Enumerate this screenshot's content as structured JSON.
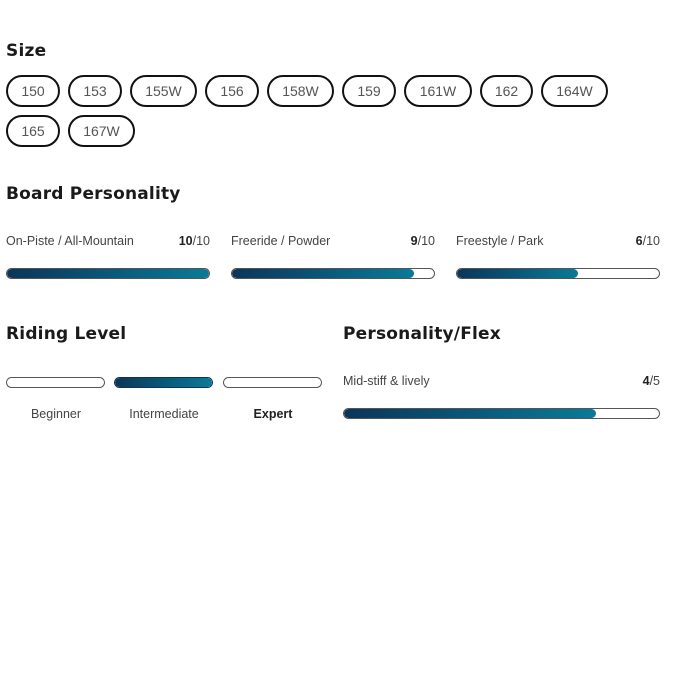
{
  "size": {
    "title": "Size",
    "options": [
      "150",
      "153",
      "155W",
      "156",
      "158W",
      "159",
      "161W",
      "162",
      "164W",
      "165",
      "167W"
    ]
  },
  "personality": {
    "title": "Board Personality",
    "items": [
      {
        "label": "On-Piste / All-Mountain",
        "value": "10",
        "max": "/10"
      },
      {
        "label": "Freeride / Powder",
        "value": "9",
        "max": "/10"
      },
      {
        "label": "Freestyle / Park",
        "value": "6",
        "max": "/10"
      }
    ]
  },
  "riding": {
    "title": "Riding Level",
    "levels": [
      "Beginner",
      "Intermediate",
      "Expert"
    ],
    "active": "Intermediate",
    "bold_label": "Expert"
  },
  "flex": {
    "title": "Personality/Flex",
    "label": "Mid-stiff & lively",
    "value": "4",
    "max": "/5"
  },
  "colors": {
    "fill_start": "#0b3558",
    "fill_end": "#0a7a98"
  }
}
